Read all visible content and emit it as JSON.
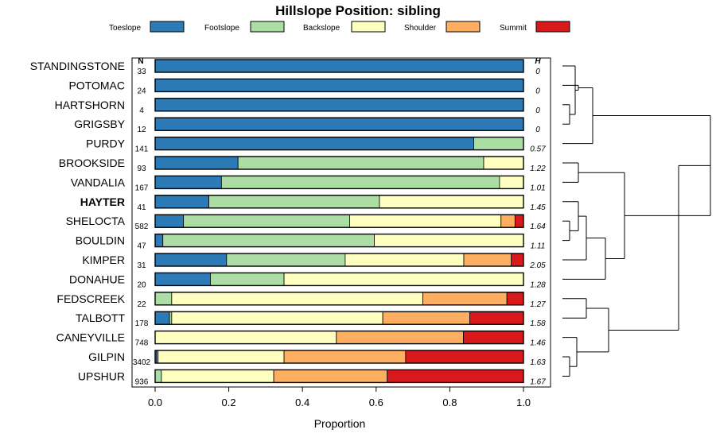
{
  "chart_data": {
    "type": "bar",
    "orientation": "horizontal",
    "stacked": true,
    "title": "Hillslope Position: sibling",
    "xlabel": "Proportion",
    "ylabel": "",
    "xlim": [
      0,
      1
    ],
    "x_ticks": [
      "0.0",
      "0.2",
      "0.4",
      "0.6",
      "0.8",
      "1.0"
    ],
    "n_header": "N",
    "h_header": "H",
    "legend_position": "top",
    "highlight": "HAYTER",
    "legend": [
      {
        "name": "Toeslope",
        "color": "#2c7bb6"
      },
      {
        "name": "Footslope",
        "color": "#abdda4"
      },
      {
        "name": "Backslope",
        "color": "#ffffbf"
      },
      {
        "name": "Shoulder",
        "color": "#fdae61"
      },
      {
        "name": "Summit",
        "color": "#d7191c"
      }
    ],
    "rows": [
      {
        "name": "STANDINGSTONE",
        "n": "33",
        "h": "0",
        "values": [
          1.0,
          0,
          0,
          0,
          0
        ]
      },
      {
        "name": "POTOMAC",
        "n": "24",
        "h": "0",
        "values": [
          1.0,
          0,
          0,
          0,
          0
        ]
      },
      {
        "name": "HARTSHORN",
        "n": "4",
        "h": "0",
        "values": [
          1.0,
          0,
          0,
          0,
          0
        ]
      },
      {
        "name": "GRIGSBY",
        "n": "12",
        "h": "0",
        "values": [
          1.0,
          0,
          0,
          0,
          0
        ]
      },
      {
        "name": "PURDY",
        "n": "141",
        "h": "0.57",
        "values": [
          0.865,
          0.135,
          0,
          0,
          0
        ]
      },
      {
        "name": "BROOKSIDE",
        "n": "93",
        "h": "1.22",
        "values": [
          0.225,
          0.667,
          0.108,
          0,
          0
        ]
      },
      {
        "name": "VANDALIA",
        "n": "167",
        "h": "1.01",
        "values": [
          0.18,
          0.755,
          0.065,
          0,
          0
        ]
      },
      {
        "name": "HAYTER",
        "n": "41",
        "h": "1.45",
        "values": [
          0.146,
          0.463,
          0.391,
          0,
          0
        ]
      },
      {
        "name": "SHELOCTA",
        "n": "582",
        "h": "1.64",
        "values": [
          0.077,
          0.451,
          0.411,
          0.038,
          0.023
        ]
      },
      {
        "name": "BOULDIN",
        "n": "47",
        "h": "1.11",
        "values": [
          0.021,
          0.574,
          0.405,
          0,
          0
        ]
      },
      {
        "name": "KIMPER",
        "n": "31",
        "h": "2.05",
        "values": [
          0.194,
          0.322,
          0.322,
          0.129,
          0.033
        ]
      },
      {
        "name": "DONAHUE",
        "n": "20",
        "h": "1.28",
        "values": [
          0.15,
          0.2,
          0.65,
          0,
          0
        ]
      },
      {
        "name": "FEDSCREEK",
        "n": "22",
        "h": "1.27",
        "values": [
          0,
          0.045,
          0.682,
          0.228,
          0.045
        ]
      },
      {
        "name": "TALBOTT",
        "n": "178",
        "h": "1.58",
        "values": [
          0.039,
          0.006,
          0.573,
          0.236,
          0.146
        ]
      },
      {
        "name": "CANEYVILLE",
        "n": "748",
        "h": "1.46",
        "values": [
          0,
          0,
          0.492,
          0.345,
          0.163
        ]
      },
      {
        "name": "GILPIN",
        "n": "3402",
        "h": "1.63",
        "values": [
          0.004,
          0.004,
          0.342,
          0.33,
          0.32
        ]
      },
      {
        "name": "UPSHUR",
        "n": "936",
        "h": "1.67",
        "values": [
          0,
          0.017,
          0.305,
          0.308,
          0.37
        ]
      }
    ]
  }
}
